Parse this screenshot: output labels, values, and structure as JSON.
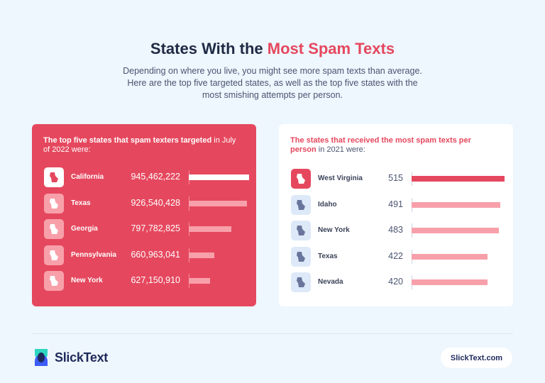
{
  "header": {
    "title_prefix": "States With the ",
    "title_highlight": "Most Spam Texts",
    "subtitle": "Depending on where you live, you might see more spam texts than average. Here are the top five targeted states, as well as the top five states with the most smishing attempts per person."
  },
  "chart_data": [
    {
      "type": "bar",
      "orientation": "horizontal",
      "title_bold": "The top five states that spam texters targeted",
      "title_rest": " in July of 2022 were:",
      "categories": [
        "California",
        "Texas",
        "Georgia",
        "Pennsylvania",
        "New York"
      ],
      "values": [
        945462222,
        926540428,
        797782825,
        660963041,
        627150910
      ],
      "icons": [
        "california-icon",
        "texas-icon",
        "georgia-icon",
        "pennsylvania-icon",
        "new-york-icon"
      ],
      "colors": {
        "highlight": "#ffffff",
        "bar": "#f8a0aa",
        "background": "#e5485e"
      }
    },
    {
      "type": "bar",
      "orientation": "horizontal",
      "title_bold": "The states that received the most spam texts per person",
      "title_rest": " in 2021 were:",
      "categories": [
        "West Virginia",
        "Idaho",
        "New York",
        "Texas",
        "Nevada"
      ],
      "values": [
        515,
        491,
        483,
        422,
        420
      ],
      "icons": [
        "west-virginia-icon",
        "idaho-icon",
        "new-york-icon",
        "texas-icon",
        "nevada-icon"
      ],
      "colors": {
        "highlight": "#e5485e",
        "bar": "#f8a0aa",
        "background": "#ffffff"
      }
    }
  ],
  "footer": {
    "brand": "SlickText",
    "website": "SlickText.com"
  }
}
